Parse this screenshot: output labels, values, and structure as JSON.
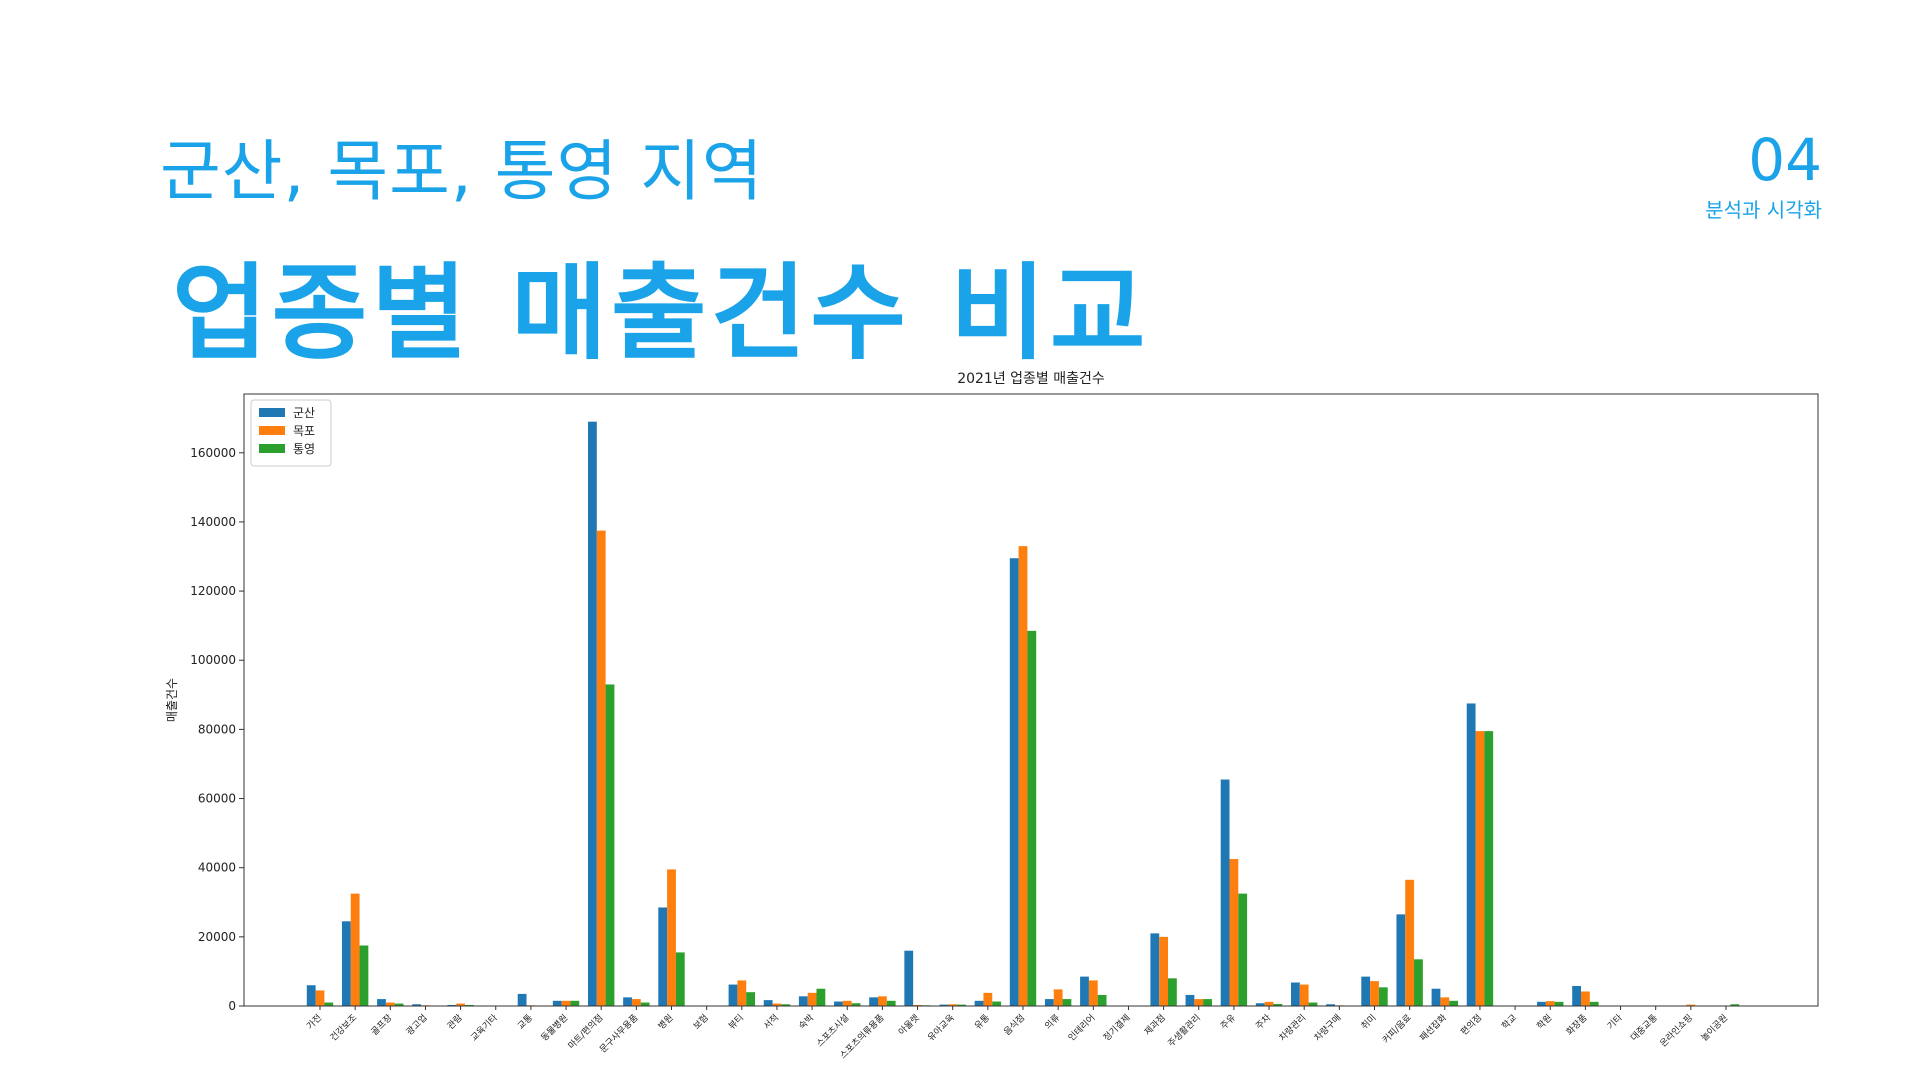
{
  "header": {
    "subtitle": "군산, 목포, 통영 지역",
    "title": "업종별 매출건수 비교",
    "section_number": "04",
    "section_label": "분석과 시각화"
  },
  "colors": {
    "accent": "#1aa3e8",
    "series": [
      "#1f77b4",
      "#ff7f0e",
      "#2ca02c"
    ]
  },
  "chart_data": {
    "type": "bar",
    "title": "2021년 업종별 매출건수",
    "xlabel": "",
    "ylabel": "매출건수",
    "ylim": [
      0,
      177000
    ],
    "yticks": [
      0,
      20000,
      40000,
      60000,
      80000,
      100000,
      120000,
      140000,
      160000
    ],
    "grid": false,
    "legend_position": "top-left",
    "categories": [
      "가전",
      "건강보조",
      "골프장",
      "광고업",
      "관람",
      "교육기타",
      "교통",
      "동물병원",
      "마트/편의점",
      "문구사무용품",
      "병원",
      "보험",
      "뷰티",
      "서적",
      "숙박",
      "스포츠시설",
      "스포츠의류용품",
      "아울렛",
      "유아교육",
      "유통",
      "음식점",
      "의류",
      "인테리어",
      "정기결제",
      "제과점",
      "주생활관리",
      "주유",
      "주차",
      "차량관리",
      "차량구매",
      "취미",
      "커피/음료",
      "패션잡화",
      "편의점",
      "학교",
      "학원",
      "화장품",
      "기타",
      "대중교통",
      "온라인쇼핑",
      "놀이공원"
    ],
    "series": [
      {
        "name": "군산",
        "values": [
          6000,
          24500,
          2000,
          500,
          300,
          0,
          3500,
          1500,
          169000,
          2500,
          28500,
          0,
          6200,
          1700,
          2800,
          1300,
          2500,
          16000,
          400,
          1500,
          129500,
          2000,
          8500,
          0,
          21000,
          3200,
          65500,
          800,
          6800,
          500,
          8500,
          26500,
          5000,
          87500,
          0,
          1200,
          5800,
          0,
          0,
          0,
          0
        ]
      },
      {
        "name": "목포",
        "values": [
          4500,
          32500,
          1000,
          200,
          700,
          0,
          200,
          1500,
          137500,
          2000,
          39500,
          0,
          7400,
          700,
          3800,
          1500,
          2800,
          300,
          500,
          3800,
          133000,
          4800,
          7400,
          0,
          20000,
          2000,
          42500,
          1200,
          6200,
          200,
          7200,
          36500,
          2500,
          79500,
          0,
          1400,
          4200,
          0,
          0,
          400,
          0
        ]
      },
      {
        "name": "통영",
        "values": [
          1000,
          17500,
          700,
          100,
          300,
          0,
          100,
          1500,
          93000,
          1000,
          15500,
          0,
          4000,
          500,
          5000,
          800,
          1500,
          200,
          400,
          1300,
          108500,
          2000,
          3200,
          0,
          8000,
          2000,
          32500,
          600,
          1000,
          100,
          5400,
          13500,
          1500,
          79500,
          0,
          1200,
          1200,
          0,
          0,
          0,
          500
        ]
      }
    ]
  }
}
